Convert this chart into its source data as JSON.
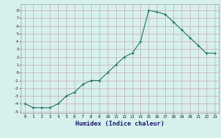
{
  "x": [
    0,
    1,
    2,
    3,
    4,
    5,
    6,
    7,
    8,
    9,
    10,
    11,
    12,
    13,
    14,
    15,
    16,
    17,
    18,
    19,
    20,
    21,
    22,
    23
  ],
  "y": [
    -4,
    -4.5,
    -4.5,
    -4.5,
    -4,
    -3,
    -2.5,
    -1.5,
    -1,
    -1,
    0,
    1,
    2,
    2.5,
    4,
    8,
    7.8,
    7.5,
    6.5,
    5.5,
    4.5,
    3.5,
    2.5,
    2.5
  ],
  "xlabel": "Humidex (Indice chaleur)",
  "ylim": [
    -5.2,
    8.8
  ],
  "xlim": [
    -0.5,
    23.5
  ],
  "yticks": [
    -5,
    -4,
    -3,
    -2,
    -1,
    0,
    1,
    2,
    3,
    4,
    5,
    6,
    7,
    8
  ],
  "xticks": [
    0,
    1,
    2,
    3,
    4,
    5,
    6,
    7,
    8,
    9,
    10,
    11,
    12,
    13,
    14,
    15,
    16,
    17,
    18,
    19,
    20,
    21,
    22,
    23
  ],
  "line_color": "#2a7a68",
  "bg_color": "#d6f0ee",
  "grid_color": "#c8a8a8",
  "marker": "+"
}
